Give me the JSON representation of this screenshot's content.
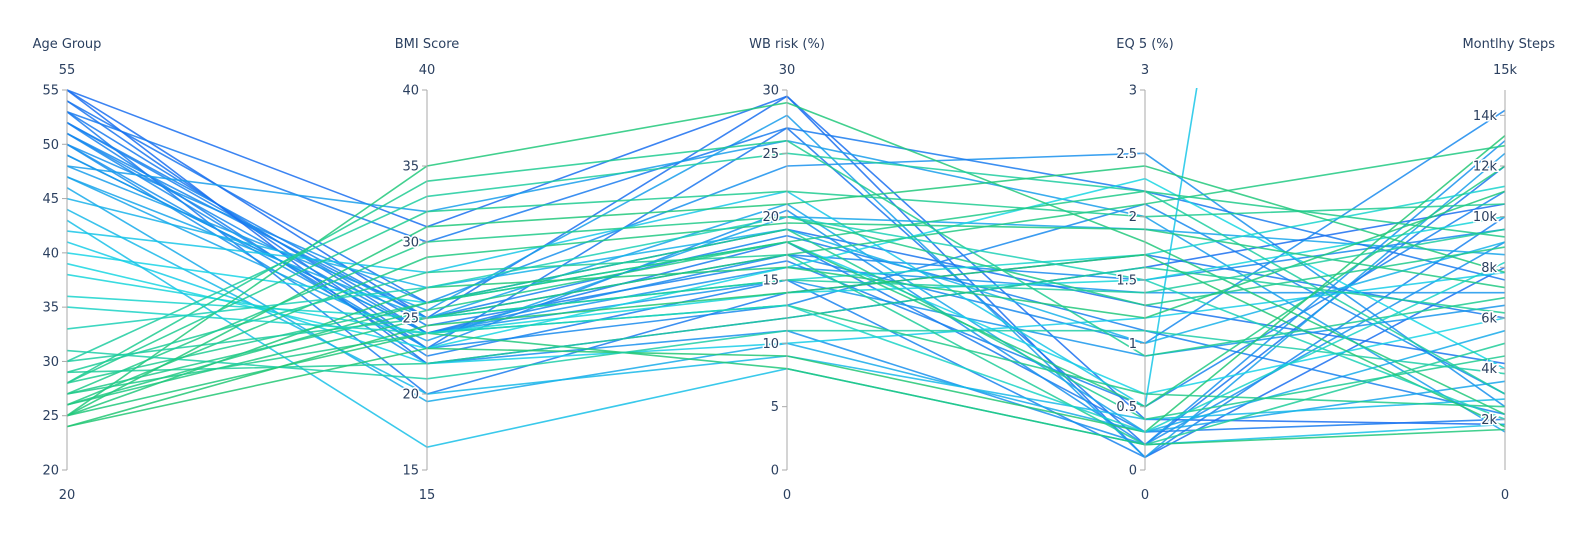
{
  "chart_data": {
    "type": "parallel-coordinates",
    "color_by": "Age Group",
    "colorscale": [
      "#22c774",
      "#17d6e6",
      "#1a6ef0"
    ],
    "dimensions": [
      {
        "label": "Age Group",
        "range": [
          20,
          55
        ],
        "ticks": [
          20,
          25,
          30,
          35,
          40,
          45,
          50,
          55
        ],
        "tick_labels": [
          "20",
          "25",
          "30",
          "35",
          "40",
          "45",
          "50",
          "55"
        ],
        "top_label": "55",
        "bottom_label": "20"
      },
      {
        "label": "BMI Score",
        "range": [
          15,
          40
        ],
        "ticks": [
          15,
          20,
          25,
          30,
          35,
          40
        ],
        "tick_labels": [
          "15",
          "20",
          "25",
          "30",
          "35",
          "40"
        ],
        "top_label": "40",
        "bottom_label": "15"
      },
      {
        "label": "WB risk (%)",
        "range": [
          0,
          30
        ],
        "ticks": [
          0,
          5,
          10,
          15,
          20,
          25,
          30
        ],
        "tick_labels": [
          "0",
          "5",
          "10",
          "15",
          "20",
          "25",
          "30"
        ],
        "top_label": "30",
        "bottom_label": "0"
      },
      {
        "label": "EQ 5 (%)",
        "range": [
          0,
          3
        ],
        "ticks": [
          0,
          0.5,
          1,
          1.5,
          2,
          2.5,
          3
        ],
        "tick_labels": [
          "0",
          "0.5",
          "1",
          "1.5",
          "2",
          "2.5",
          "3"
        ],
        "top_label": "3",
        "bottom_label": "0"
      },
      {
        "label": "Montlhy Steps",
        "range": [
          0,
          15000
        ],
        "ticks": [
          2000,
          4000,
          6000,
          8000,
          10000,
          12000,
          14000
        ],
        "tick_labels": [
          "2k",
          "4k",
          "6k",
          "8k",
          "10k",
          "12k",
          "14k"
        ],
        "top_label": "15k",
        "bottom_label": "0"
      }
    ],
    "lines": [
      [
        55,
        25,
        29.5,
        0.1,
        8000
      ],
      [
        54,
        23,
        27,
        0.2,
        12000
      ],
      [
        53,
        24,
        18,
        0.3,
        2000
      ],
      [
        52,
        22.5,
        15,
        0.1,
        10000
      ],
      [
        51,
        25,
        17,
        1.0,
        14200
      ],
      [
        50,
        26,
        24,
        2.5,
        2500
      ],
      [
        49,
        24,
        16,
        1.4,
        7000
      ],
      [
        55,
        31,
        29.5,
        0.4,
        1800
      ],
      [
        53,
        20,
        14,
        1.7,
        6000
      ],
      [
        52,
        24.5,
        16.5,
        0.5,
        11000
      ],
      [
        51,
        23,
        13,
        2.1,
        3000
      ],
      [
        50,
        22,
        11,
        0.2,
        9000
      ],
      [
        54,
        26,
        19,
        1.3,
        4200
      ],
      [
        48,
        25.5,
        28,
        0.1,
        12500
      ],
      [
        47,
        23.5,
        20,
        1.9,
        8500
      ],
      [
        46,
        19.5,
        10,
        0.3,
        5500
      ],
      [
        53,
        30,
        27,
        2.2,
        7500
      ],
      [
        52,
        25,
        18.5,
        1.1,
        2200
      ],
      [
        49,
        24,
        15,
        0.9,
        6500
      ],
      [
        55,
        22,
        12,
        1.6,
        10500
      ],
      [
        50,
        23,
        20.5,
        0.2,
        13000
      ],
      [
        48,
        32,
        26,
        2.0,
        1500
      ],
      [
        51,
        24,
        17,
        1.5,
        9500
      ],
      [
        47,
        25,
        21,
        0.3,
        3500
      ],
      [
        41,
        22,
        10,
        1.2,
        7800
      ],
      [
        44,
        20,
        9,
        0.4,
        2800
      ],
      [
        38,
        24,
        14,
        1.5,
        10000
      ],
      [
        40,
        26,
        18,
        0.6,
        6000
      ],
      [
        43,
        16.5,
        8,
        0.2,
        1800
      ],
      [
        36,
        25,
        15,
        1.7,
        11200
      ],
      [
        42,
        28,
        22,
        0.5,
        90000
      ],
      [
        39,
        23,
        16,
        2.3,
        4000
      ],
      [
        45,
        27,
        19,
        1.0,
        9000
      ],
      [
        25,
        35,
        29,
        1.8,
        2200
      ],
      [
        25,
        24,
        8,
        0.2,
        1600
      ],
      [
        26,
        25,
        17,
        2.1,
        12800
      ],
      [
        27,
        30,
        20,
        1.3,
        8800
      ],
      [
        28,
        26,
        19,
        0.4,
        4500
      ],
      [
        29,
        22,
        12,
        1.6,
        6200
      ],
      [
        30,
        33,
        25,
        2.2,
        3000
      ],
      [
        24,
        23,
        9,
        0.3,
        13200
      ],
      [
        25,
        27,
        16,
        1.2,
        11000
      ],
      [
        26,
        29,
        19.5,
        1.9,
        7200
      ],
      [
        27,
        24,
        13,
        0.6,
        2500
      ],
      [
        28,
        32,
        22,
        2.0,
        10500
      ],
      [
        29,
        28,
        17,
        0.2,
        5000
      ],
      [
        30,
        25,
        15,
        1.4,
        9500
      ],
      [
        31,
        21,
        11,
        1.1,
        3800
      ],
      [
        25,
        31,
        21,
        2.4,
        7800
      ],
      [
        26,
        26,
        18,
        0.5,
        12000
      ],
      [
        24,
        24.5,
        14,
        1.7,
        1700
      ],
      [
        28,
        34,
        26,
        0.9,
        6800
      ],
      [
        27,
        25.5,
        18,
        2.2,
        9200
      ],
      [
        33,
        27,
        20,
        1.5,
        2000
      ],
      [
        35,
        24,
        13,
        0.3,
        8200
      ]
    ]
  }
}
